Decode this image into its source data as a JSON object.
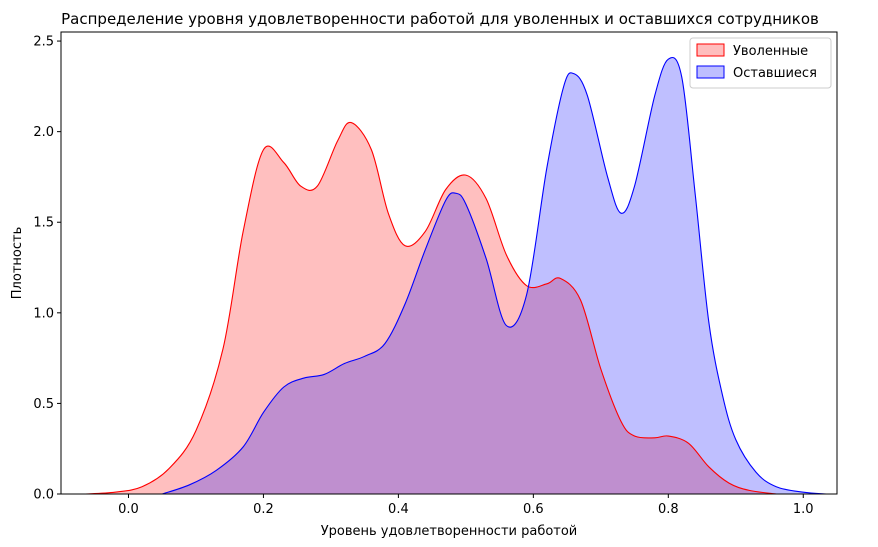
{
  "chart_data": {
    "type": "area",
    "title": "Распределение уровня удовлетворенности работой для уволенных и оставшихся сотрудников",
    "xlabel": "Уровень удовлетворенности работой",
    "ylabel": "Плотность",
    "xlim": [
      -0.1,
      1.05
    ],
    "ylim": [
      0,
      2.55
    ],
    "grid": false,
    "legend_position": "top-right",
    "x_ticks": [
      0.0,
      0.2,
      0.4,
      0.6,
      0.8,
      1.0
    ],
    "x_tick_labels": [
      "0.0",
      "0.2",
      "0.4",
      "0.6",
      "0.8",
      "1.0"
    ],
    "y_ticks": [
      0.0,
      0.5,
      1.0,
      1.5,
      2.0,
      2.5
    ],
    "y_tick_labels": [
      "0.0",
      "0.5",
      "1.0",
      "1.5",
      "2.0",
      "2.5"
    ],
    "series": [
      {
        "name": "Уволенные",
        "color": "#ff0000",
        "fill": "#ffbebe",
        "points": [
          [
            -0.065,
            0.0
          ],
          [
            -0.02,
            0.01
          ],
          [
            0.02,
            0.04
          ],
          [
            0.06,
            0.14
          ],
          [
            0.1,
            0.35
          ],
          [
            0.14,
            0.8
          ],
          [
            0.17,
            1.45
          ],
          [
            0.2,
            1.9
          ],
          [
            0.23,
            1.83
          ],
          [
            0.255,
            1.7
          ],
          [
            0.28,
            1.7
          ],
          [
            0.31,
            1.95
          ],
          [
            0.33,
            2.05
          ],
          [
            0.36,
            1.9
          ],
          [
            0.385,
            1.55
          ],
          [
            0.41,
            1.37
          ],
          [
            0.44,
            1.45
          ],
          [
            0.47,
            1.68
          ],
          [
            0.5,
            1.76
          ],
          [
            0.53,
            1.63
          ],
          [
            0.56,
            1.32
          ],
          [
            0.59,
            1.15
          ],
          [
            0.62,
            1.16
          ],
          [
            0.64,
            1.19
          ],
          [
            0.67,
            1.07
          ],
          [
            0.7,
            0.69
          ],
          [
            0.73,
            0.4
          ],
          [
            0.75,
            0.32
          ],
          [
            0.78,
            0.31
          ],
          [
            0.8,
            0.32
          ],
          [
            0.83,
            0.28
          ],
          [
            0.86,
            0.15
          ],
          [
            0.89,
            0.06
          ],
          [
            0.92,
            0.02
          ],
          [
            0.96,
            0.0
          ]
        ]
      },
      {
        "name": "Оставшиеся",
        "color": "#0000ff",
        "fill": "#bebeff",
        "points": [
          [
            0.05,
            0.0
          ],
          [
            0.09,
            0.05
          ],
          [
            0.13,
            0.13
          ],
          [
            0.17,
            0.26
          ],
          [
            0.2,
            0.45
          ],
          [
            0.23,
            0.59
          ],
          [
            0.26,
            0.64
          ],
          [
            0.29,
            0.66
          ],
          [
            0.32,
            0.72
          ],
          [
            0.35,
            0.76
          ],
          [
            0.38,
            0.83
          ],
          [
            0.41,
            1.05
          ],
          [
            0.44,
            1.35
          ],
          [
            0.47,
            1.62
          ],
          [
            0.485,
            1.66
          ],
          [
            0.5,
            1.6
          ],
          [
            0.53,
            1.3
          ],
          [
            0.56,
            0.93
          ],
          [
            0.59,
            1.1
          ],
          [
            0.62,
            1.8
          ],
          [
            0.645,
            2.25
          ],
          [
            0.66,
            2.32
          ],
          [
            0.68,
            2.2
          ],
          [
            0.71,
            1.75
          ],
          [
            0.73,
            1.55
          ],
          [
            0.75,
            1.7
          ],
          [
            0.78,
            2.2
          ],
          [
            0.8,
            2.4
          ],
          [
            0.82,
            2.3
          ],
          [
            0.84,
            1.65
          ],
          [
            0.86,
            0.95
          ],
          [
            0.88,
            0.55
          ],
          [
            0.9,
            0.3
          ],
          [
            0.93,
            0.12
          ],
          [
            0.96,
            0.04
          ],
          [
            1.0,
            0.01
          ],
          [
            1.035,
            0.0
          ]
        ]
      }
    ]
  }
}
